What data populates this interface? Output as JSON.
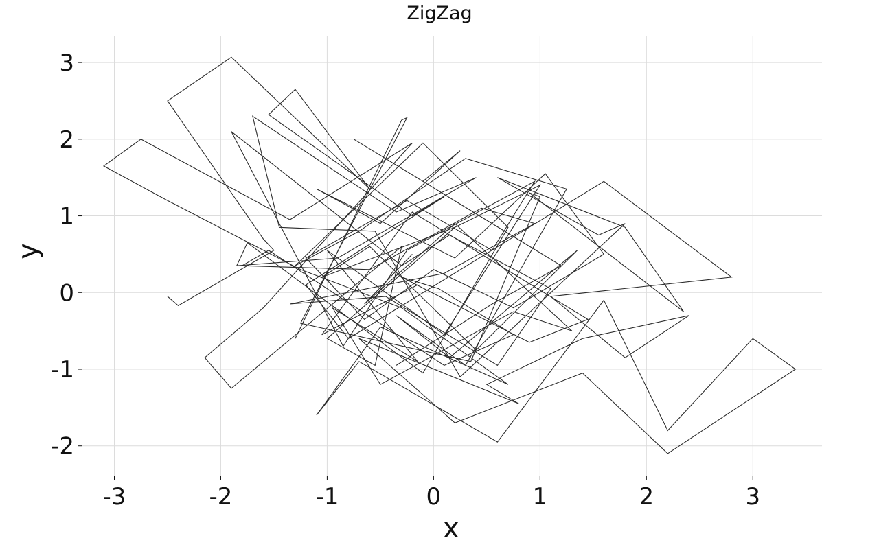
{
  "chart_data": {
    "type": "line",
    "title": "ZigZag",
    "xlabel": "x",
    "ylabel": "y",
    "xlim": [
      -3.3,
      3.65
    ],
    "ylim": [
      -2.45,
      3.35
    ],
    "grid": true,
    "xticks": [
      -3,
      -2,
      -1,
      0,
      1,
      2,
      3
    ],
    "yticks": [
      -2,
      -1,
      0,
      1,
      2,
      3
    ],
    "xtick_labels": [
      "-3",
      "-2",
      "-1",
      "0",
      "1",
      "2",
      "3"
    ],
    "ytick_labels": [
      "-2",
      "-1",
      "0",
      "1",
      "2",
      "3"
    ],
    "colors": {
      "line": "#2b2b2b",
      "grid": "#dcdcdc"
    },
    "series": [
      {
        "x": [
          -2.5,
          -2.4,
          -1.5,
          -1.6,
          -2.5,
          -1.9,
          -0.6,
          -1.3,
          -1.55,
          -0.2,
          0.1,
          -1.2,
          -0.8,
          1.6,
          2.8,
          1.1,
          1.8,
          2.4,
          1.4,
          0.5,
          0.8,
          -0.7,
          0.2,
          1.4,
          2.2,
          3.4,
          3.0,
          2.2,
          1.6,
          0.6,
          -0.7,
          -1.1,
          -0.5,
          0.7,
          -0.3,
          -1.25,
          -2.5,
          -3.1,
          -2.75,
          -1.35,
          -0.2,
          -1.6,
          -2.15,
          -1.9,
          -0.3,
          -0.55,
          -1.0,
          0.2
        ],
        "y": [
          -0.05,
          -0.17,
          0.55,
          0.7,
          2.5,
          3.07,
          1.35,
          2.65,
          2.32,
          1.0,
          1.25,
          0.1,
          -0.6,
          1.45,
          0.2,
          -0.05,
          -0.85,
          -0.3,
          -0.6,
          -1.2,
          -1.45,
          -0.6,
          -1.7,
          -1.05,
          -2.1,
          -1.0,
          -0.6,
          -1.8,
          -0.1,
          -1.95,
          -0.9,
          -1.6,
          -0.45,
          -1.2,
          -0.2,
          0.3,
          1.2,
          1.65,
          2.0,
          0.95,
          1.95,
          -0.2,
          -0.85,
          -1.25,
          0.6,
          -0.95,
          -0.6,
          0.85
        ]
      },
      {
        "x": [
          -1.3,
          -0.3,
          -0.25,
          -1.25,
          0.35,
          1.0,
          0.9,
          2.35,
          1.8,
          0.6,
          1.55,
          1.8,
          0.25,
          -0.55,
          -1.45,
          -1.7,
          -0.35,
          0.4,
          -0.9,
          -1.85,
          -1.75,
          -0.1,
          0.7,
          -0.1,
          -1.3,
          -0.7,
          0.3,
          1.25,
          0.3,
          -0.35,
          0.15,
          1.35,
          0.4,
          -0.6,
          -1.05,
          0.2,
          1.0,
          0.1,
          -1.0,
          -0.15,
          -0.95,
          -0.5,
          0.75,
          1.3,
          0.2,
          -0.65,
          -0.2
        ],
        "y": [
          -0.6,
          2.25,
          2.28,
          -0.4,
          -0.9,
          1.25,
          1.3,
          -0.25,
          0.85,
          1.5,
          0.75,
          0.9,
          -1.1,
          0.8,
          0.85,
          2.3,
          1.05,
          1.5,
          0.45,
          0.35,
          0.65,
          -1.05,
          0.85,
          1.95,
          0.35,
          0.8,
          1.75,
          1.35,
          -0.95,
          -0.3,
          -0.85,
          0.55,
          -0.75,
          0.6,
          0.2,
          0.85,
          1.4,
          -0.55,
          0.55,
          -0.9,
          -0.2,
          -1.2,
          -0.25,
          -0.5,
          0.9,
          -0.15,
          0.5
        ]
      },
      {
        "x": [
          -0.35,
          0.55,
          1.2,
          -0.75,
          -0.1,
          0.25,
          -0.5,
          -1.1,
          0.2,
          1.05,
          1.6,
          0.75,
          0.0,
          -0.65,
          -1.2,
          -0.25,
          0.55,
          0.95,
          -0.25,
          -0.85,
          -1.9,
          -0.3,
          0.15,
          1.1,
          0.6,
          -0.45,
          -1.35,
          0.1,
          0.95,
          0.45,
          -0.6,
          -1.8,
          -1.55,
          0.1,
          0.75,
          0.05,
          -0.3,
          0.9,
          1.45,
          -0.2,
          -1.05,
          -0.15
        ],
        "y": [
          -0.95,
          -0.15,
          0.35,
          2.0,
          1.45,
          1.85,
          0.9,
          1.35,
          0.45,
          1.55,
          0.5,
          -0.2,
          0.3,
          -0.35,
          0.45,
          1.2,
          0.55,
          1.45,
          0.55,
          -0.7,
          2.1,
          0.35,
          0.75,
          0.05,
          -0.95,
          -0.05,
          -0.15,
          0.25,
          0.9,
          1.1,
          0.3,
          0.35,
          0.55,
          -0.95,
          -0.55,
          0.05,
          0.2,
          -0.65,
          -0.35,
          1.05,
          -0.55,
          0.1
        ]
      }
    ]
  }
}
